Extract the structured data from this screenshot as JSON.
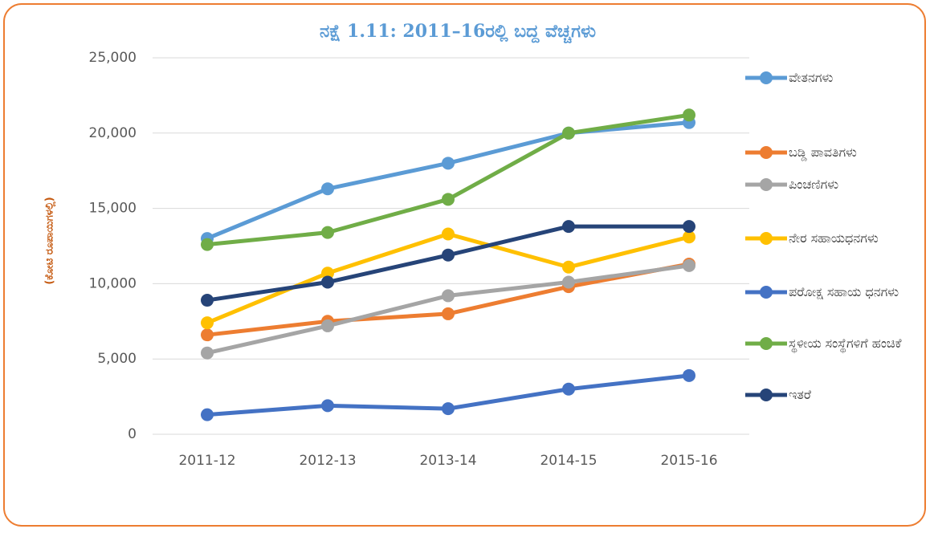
{
  "chart_data": {
    "type": "line",
    "title": "ನಕ್ಷೆ 1.11: 2011–16ರಲ್ಲಿ  ಬದ್ದ ವೆಚ್ಚಗಳು",
    "y_label": "(ಕೋಟಿ ರೂಪಾಯಿಗಳಲ್ಲಿ)",
    "categories": [
      "2011-12",
      "2012-13",
      "2013-14",
      "2014-15",
      "2015-16"
    ],
    "ylim": [
      0,
      25000
    ],
    "yticks": [
      0,
      {
        "value": 5000,
        "label": "5,000"
      },
      {
        "value": 10000,
        "label": "10,000"
      },
      {
        "value": 15000,
        "label": "15,000"
      },
      {
        "value": 20000,
        "label": "20,000"
      },
      {
        "value": 25000,
        "label": "25,000"
      }
    ],
    "grid": true,
    "legend": "right",
    "series": [
      {
        "name": "ವೇತನಗಳು",
        "color": "#5b9bd5",
        "values": [
          13000,
          16300,
          18000,
          20000,
          20700
        ]
      },
      {
        "name": "ಬಡ್ಡಿ ಪಾವತಿಗಳು",
        "color": "#ed7d31",
        "values": [
          6600,
          7500,
          8000,
          9800,
          11300
        ]
      },
      {
        "name": "ಪಿಂಚಣಿಗಳು",
        "color": "#a5a5a5",
        "values": [
          5400,
          7200,
          9200,
          10100,
          11200
        ]
      },
      {
        "name": "ನೇರ ಸಹಾಯಧನಗಳು",
        "color": "#ffc000",
        "values": [
          7400,
          10700,
          13300,
          11100,
          13100
        ]
      },
      {
        "name": "ಪರೋಕ್ಷ ಸಹಾಯ ಧನಗಳು",
        "color": "#4472c4",
        "values": [
          1300,
          1900,
          1700,
          3000,
          3900
        ]
      },
      {
        "name": "ಸ್ಥಳೀಯ ಸಂಸ್ಥೆಗಳಿಗೆ ಹಂಚಿಕೆ",
        "color": "#70ad47",
        "values": [
          12600,
          13400,
          15600,
          20000,
          21200
        ]
      },
      {
        "name": "ಇತರೆ",
        "color": "#264478",
        "values": [
          8900,
          10100,
          11900,
          13800,
          13800
        ]
      }
    ]
  }
}
